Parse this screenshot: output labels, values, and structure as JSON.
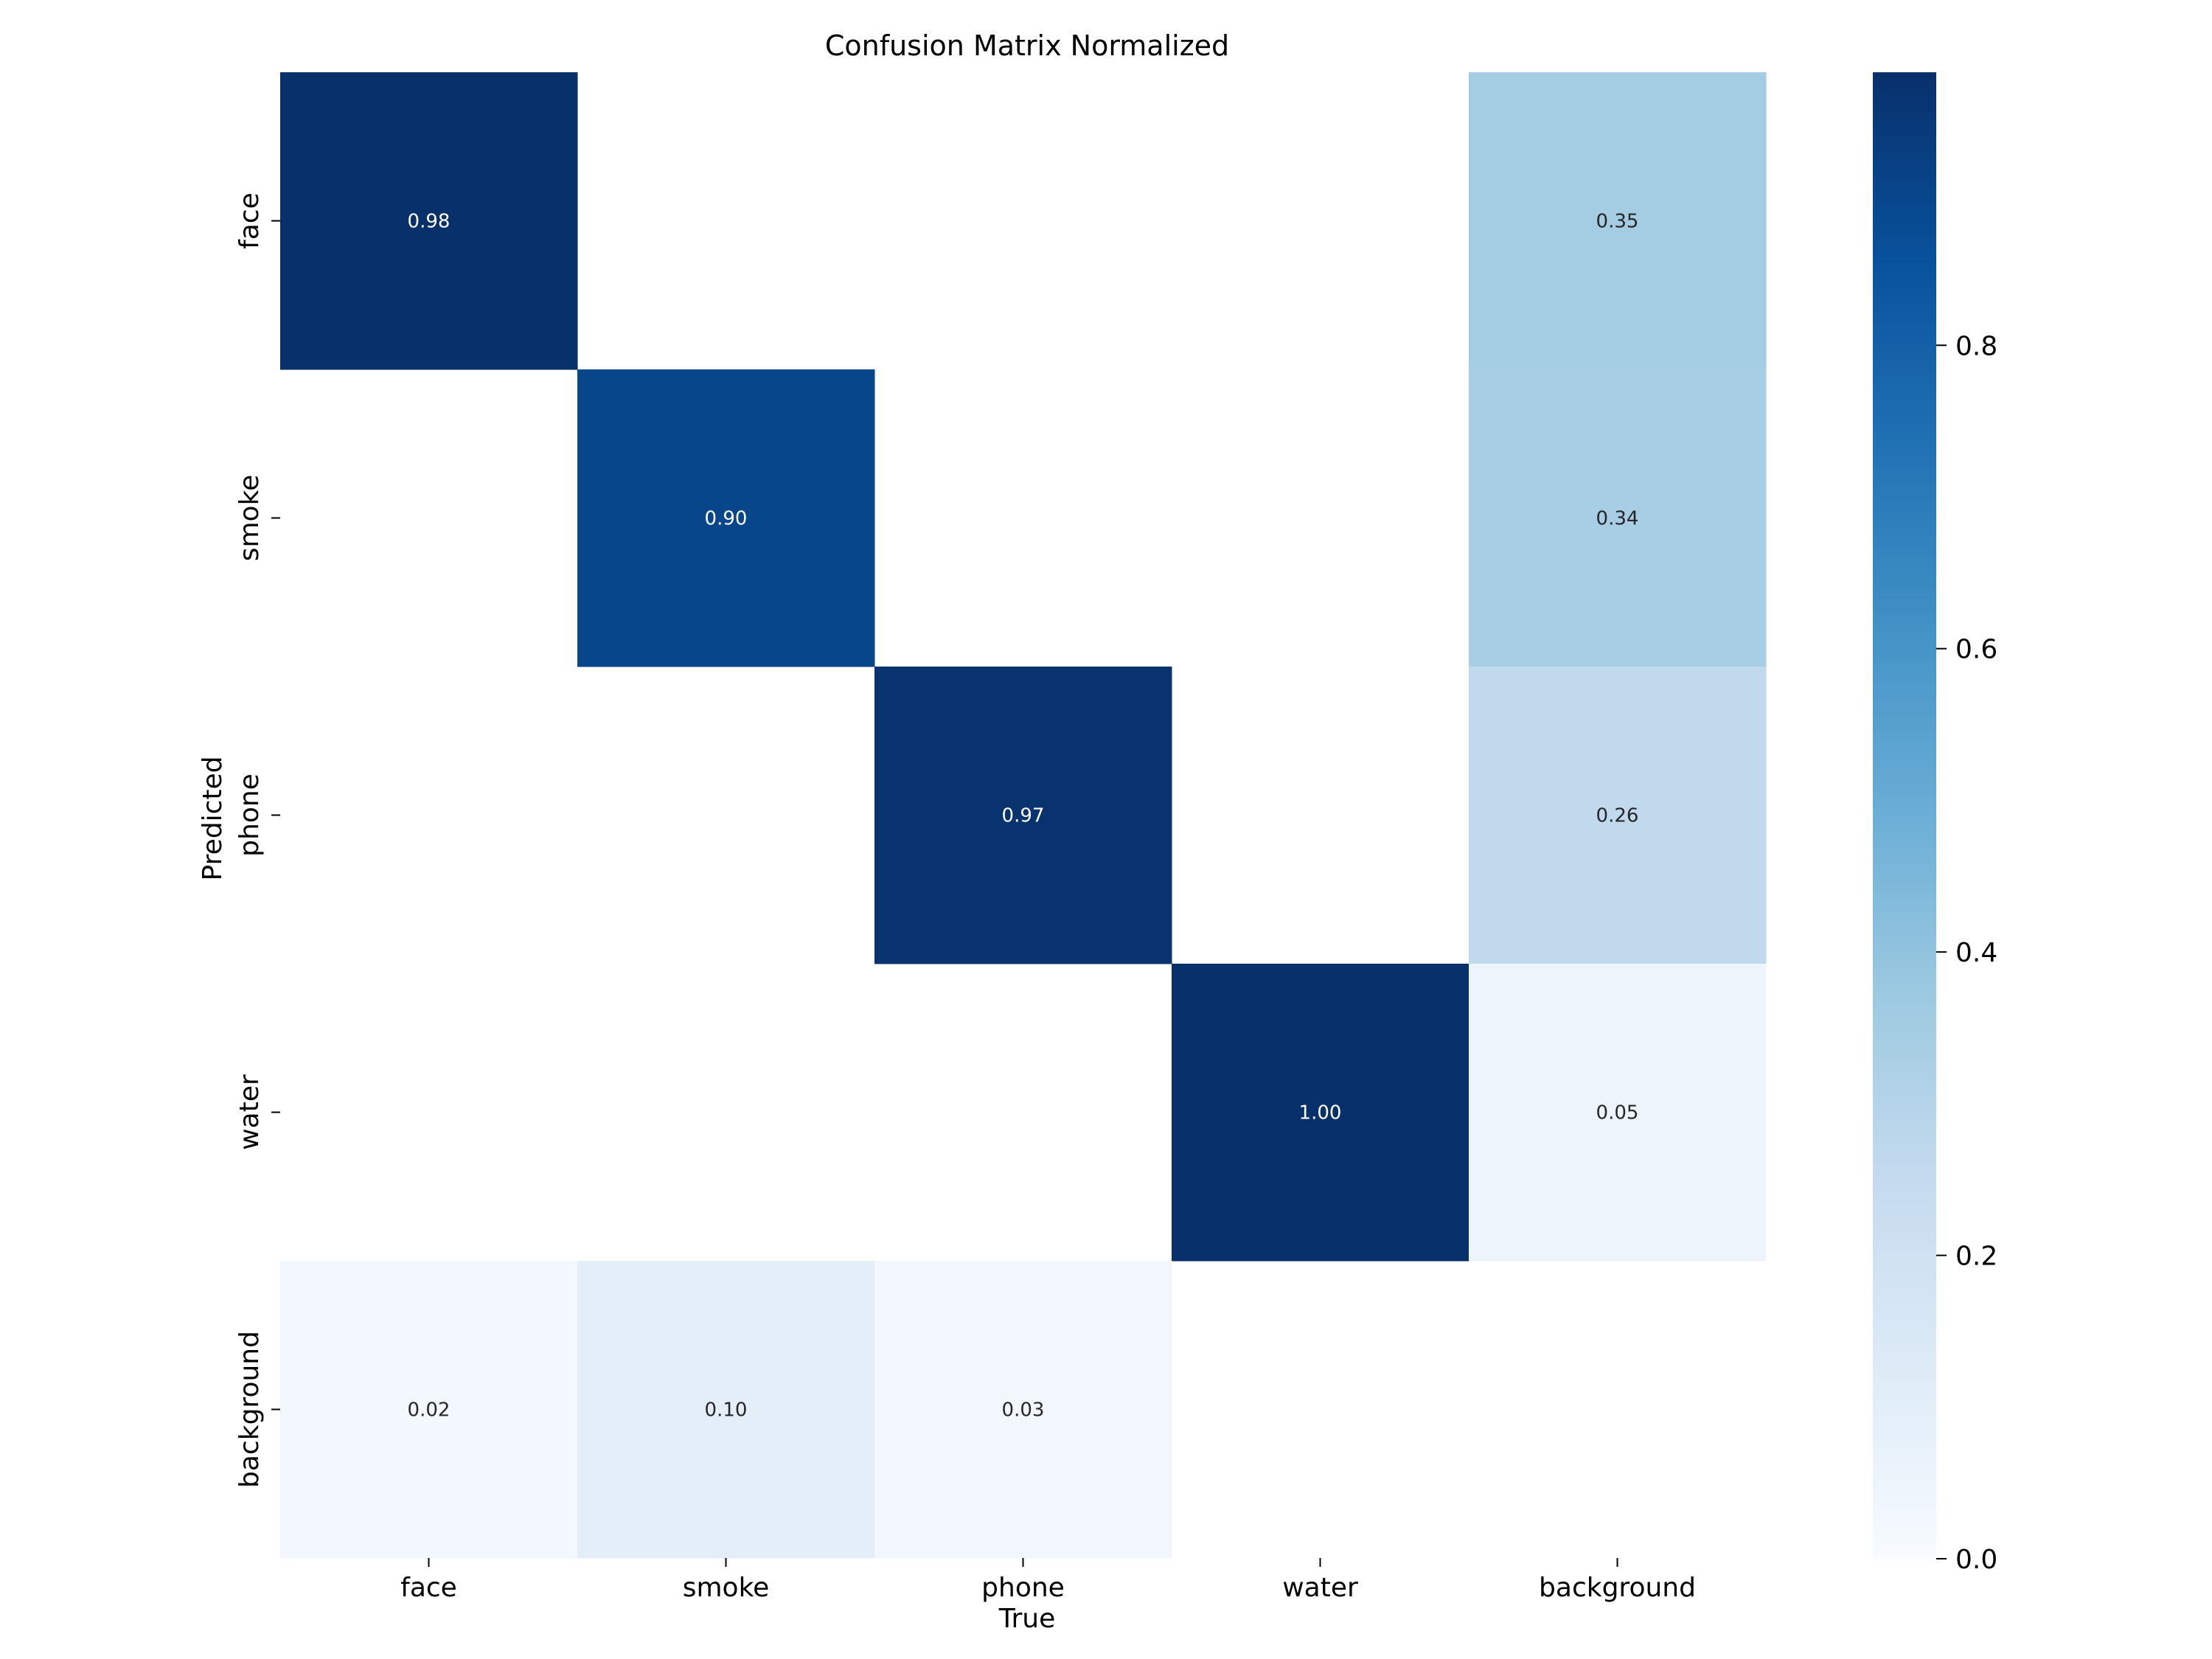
{
  "chart_data": {
    "type": "heatmap",
    "title": "Confusion Matrix Normalized",
    "xlabel": "True",
    "ylabel": "Predicted",
    "x_categories": [
      "face",
      "smoke",
      "phone",
      "water",
      "background"
    ],
    "y_categories": [
      "face",
      "smoke",
      "phone",
      "water",
      "background"
    ],
    "values": [
      [
        0.98,
        null,
        null,
        null,
        0.35
      ],
      [
        null,
        0.9,
        null,
        null,
        0.34
      ],
      [
        null,
        null,
        0.97,
        null,
        0.26
      ],
      [
        null,
        null,
        null,
        1.0,
        0.05
      ],
      [
        0.02,
        0.1,
        0.03,
        null,
        null
      ]
    ],
    "value_labels": [
      [
        "0.98",
        "",
        "",
        "",
        "0.35"
      ],
      [
        "",
        "0.90",
        "",
        "",
        "0.34"
      ],
      [
        "",
        "",
        "0.97",
        "",
        "0.26"
      ],
      [
        "",
        "",
        "",
        "1.00",
        "0.05"
      ],
      [
        "0.02",
        "0.10",
        "0.03",
        "",
        ""
      ]
    ],
    "colormap": "Blues",
    "vmin": 0.0,
    "vmax": 0.98,
    "colorbar": {
      "ticks": [
        0.0,
        0.2,
        0.4,
        0.6,
        0.8
      ],
      "tick_labels": [
        "0.0",
        "0.2",
        "0.4",
        "0.6",
        "0.8"
      ],
      "range": [
        0.0,
        0.98
      ]
    },
    "grid": false,
    "legend": "colorbar-right"
  }
}
